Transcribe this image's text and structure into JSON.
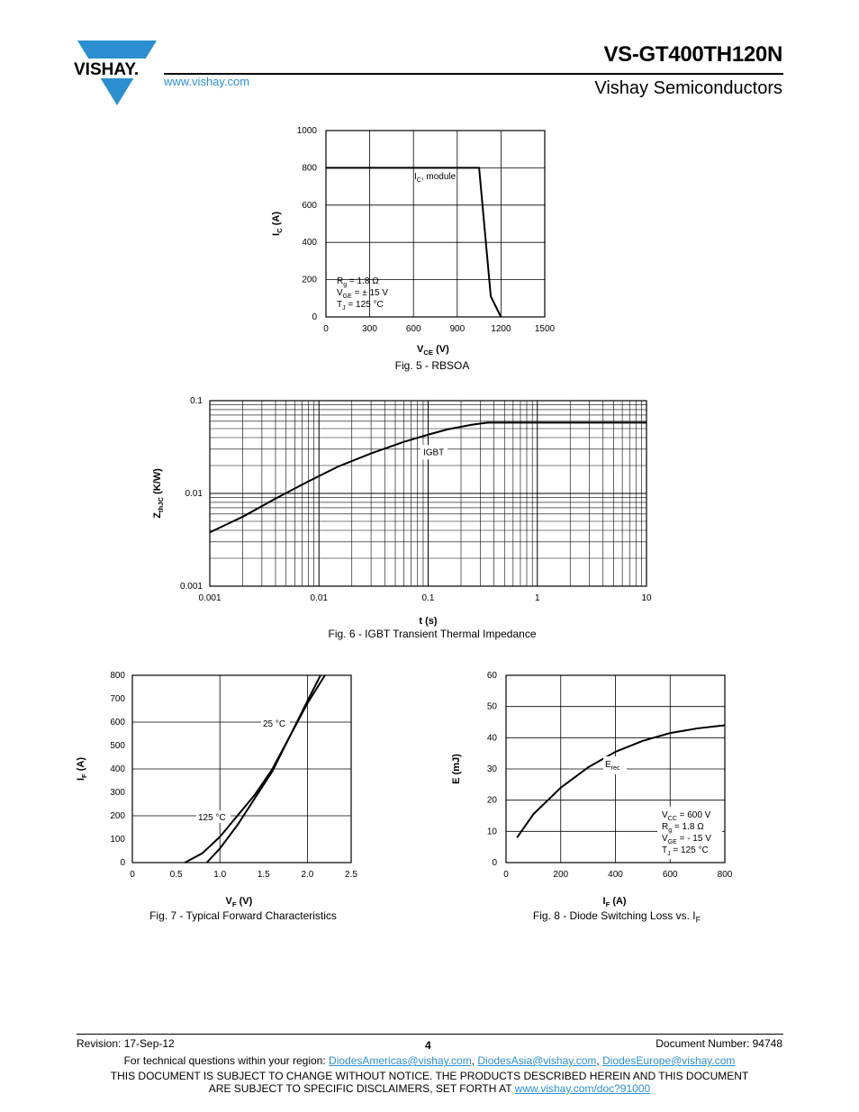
{
  "header": {
    "part_number": "VS-GT400TH120N",
    "company": "Vishay Semiconductors",
    "website": "www.vishay.com",
    "logo_text": "VISHAY."
  },
  "chart_data": [
    {
      "type": "line",
      "caption": "Fig. 5 - RBSOA",
      "xlabel": "VCE (V)",
      "ylabel": "IC (A)",
      "xlim": [
        0,
        1500
      ],
      "ylim": [
        0,
        1000
      ],
      "x_ticks": [
        0,
        300,
        600,
        900,
        1200,
        1500
      ],
      "y_ticks": [
        0,
        200,
        400,
        600,
        800,
        1000
      ],
      "series": [
        {
          "name": "IC, module",
          "x": [
            0,
            1050,
            1130,
            1200
          ],
          "y": [
            800,
            800,
            110,
            0
          ]
        }
      ],
      "annotations": [
        "IC, module",
        "Rg = 1.8 Ω",
        "VGE = ± 15 V",
        "TJ = 125 °C"
      ]
    },
    {
      "type": "line",
      "caption": "Fig. 6 - IGBT Transient Thermal Impedance",
      "xlabel": "t (s)",
      "ylabel": "ZthJC (K/W)",
      "xscale": "log",
      "yscale": "log",
      "xlim": [
        0.001,
        10
      ],
      "ylim": [
        0.001,
        0.1
      ],
      "x_ticks": [
        "0.001",
        "0.01",
        "0.1",
        "1",
        "10"
      ],
      "y_ticks": [
        "0.001",
        "0.01",
        "0.1"
      ],
      "series": [
        {
          "name": "IGBT",
          "x": [
            0.001,
            0.002,
            0.004,
            0.008,
            0.015,
            0.03,
            0.06,
            0.1,
            0.15,
            0.25,
            0.35,
            0.5,
            1,
            10
          ],
          "y": [
            0.0038,
            0.0056,
            0.0088,
            0.0135,
            0.0195,
            0.027,
            0.036,
            0.043,
            0.049,
            0.055,
            0.058,
            0.058,
            0.058,
            0.058
          ]
        }
      ],
      "annotations": [
        "IGBT"
      ]
    },
    {
      "type": "line",
      "caption": "Fig. 7 - Typical Forward Characteristics",
      "xlabel": "VF (V)",
      "ylabel": "IF (A)",
      "xlim": [
        0,
        2.5
      ],
      "ylim": [
        0,
        800
      ],
      "x_ticks": [
        "0",
        "0.5",
        "1.0",
        "1.5",
        "2.0",
        "2.5"
      ],
      "y_ticks": [
        0,
        100,
        200,
        300,
        400,
        500,
        600,
        700,
        800
      ],
      "series": [
        {
          "name": "25 °C",
          "x": [
            0.85,
            1.0,
            1.2,
            1.4,
            1.6,
            1.8,
            2.0,
            2.2
          ],
          "y": [
            0,
            60,
            160,
            275,
            390,
            540,
            680,
            800
          ]
        },
        {
          "name": "125 °C",
          "x": [
            0.6,
            0.8,
            1.0,
            1.2,
            1.4,
            1.6,
            1.8,
            2.0,
            2.15
          ],
          "y": [
            0,
            40,
            110,
            200,
            290,
            400,
            540,
            690,
            800
          ]
        }
      ],
      "annotations": [
        "25 °C",
        "125 °C"
      ]
    },
    {
      "type": "line",
      "caption": "Fig. 8 - Diode Switching Loss vs. IF",
      "xlabel": "IF (A)",
      "ylabel": "E (mJ)",
      "xlim": [
        0,
        800
      ],
      "ylim": [
        0,
        60
      ],
      "x_ticks": [
        0,
        200,
        400,
        600,
        800
      ],
      "y_ticks": [
        0,
        10,
        20,
        30,
        40,
        50,
        60
      ],
      "series": [
        {
          "name": "Erec",
          "x": [
            40,
            100,
            200,
            300,
            400,
            500,
            600,
            700,
            800
          ],
          "y": [
            8,
            15.5,
            24,
            30.5,
            35.5,
            39,
            41.5,
            43,
            44
          ]
        }
      ],
      "annotations": [
        "Erec",
        "VCC = 600 V",
        "Rg = 1.8 Ω",
        "VGE = - 15 V",
        "TJ = 125 °C"
      ]
    }
  ],
  "footer": {
    "revision": "Revision: 17-Sep-12",
    "page": "4",
    "document_number": "Document Number: 94748",
    "tech_question_prefix": "For technical questions within your region: ",
    "email_americas": "DiodesAmericas@vishay.com",
    "email_asia": "DiodesAsia@vishay.com",
    "email_europe": "DiodesEurope@vishay.com",
    "disclaimer_line1": "THIS DOCUMENT IS SUBJECT TO CHANGE WITHOUT NOTICE. THE PRODUCTS DESCRIBED HEREIN AND THIS DOCUMENT",
    "disclaimer_line2_prefix": "ARE SUBJECT TO SPECIFIC DISCLAIMERS, SET FORTH AT ",
    "disclaimer_link": "www.vishay.com/doc?91000"
  }
}
